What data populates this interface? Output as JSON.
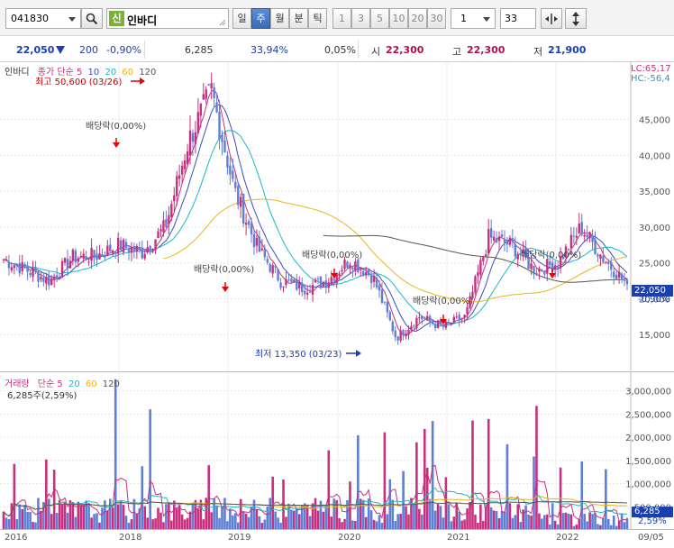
{
  "toolbar": {
    "code": "041830",
    "badge": "신",
    "name": "인바디",
    "period_buttons": [
      "일",
      "주",
      "월",
      "분",
      "틱"
    ],
    "selected_period": "주",
    "minute_buttons": [
      "1",
      "3",
      "5",
      "10",
      "20",
      "30"
    ],
    "interval_value": "1",
    "count_value": "33"
  },
  "quote": {
    "price": "22,050",
    "change": "200",
    "change_rate": "-0,90%",
    "volume": "6,285",
    "volume_rate": "33,94%",
    "turnover": "0,05%",
    "open_label": "시",
    "open": "22,300",
    "high_label": "고",
    "high": "22,300",
    "low_label": "저",
    "low": "21,900"
  },
  "price_legend": {
    "name": "인바디",
    "series": "종가",
    "method": "단순",
    "ma5": "5",
    "ma10": "10",
    "ma20": "20",
    "ma60": "60",
    "ma120": "120"
  },
  "price_annotations": {
    "high_label": "최고 50,600 (03/26)",
    "low_label": "최저 13,350 (03/23)",
    "dividend_label": "배당락(0,00%)",
    "lc": "LC:65,17",
    "hc": "HC:-56,4",
    "current_price": "22,050",
    "current_rate": "-0,90%"
  },
  "volume_legend": {
    "name": "거래량",
    "method": "단순",
    "ma5": "5",
    "ma20": "20",
    "ma60": "60",
    "ma120": "120",
    "current": "6,285주(2,59%)",
    "current_vol": "6,285",
    "current_rate": "2,59%"
  },
  "colors": {
    "up": "#c8307f",
    "down": "#5e7fd6",
    "ma5": "#c8307f",
    "ma10": "#3b4dbf",
    "ma20": "#18b8c8",
    "ma60": "#e8b520",
    "ma120": "#555555"
  },
  "chart_data": [
    {
      "type": "candlestick",
      "title": "인바디",
      "ylim": [
        10000,
        53000
      ],
      "y_ticks": [
        "15,000",
        "20,000",
        "25,000",
        "30,000",
        "35,000",
        "40,000",
        "45,000"
      ],
      "x": [
        "2016-01",
        "2016-04",
        "2016-07",
        "2016-10",
        "2017-01",
        "2017-04",
        "2017-07",
        "2017-10",
        "2018-01",
        "2018-03",
        "2018-06",
        "2018-09",
        "2018-12",
        "2019-03",
        "2019-06",
        "2019-09",
        "2019-12",
        "2020-03",
        "2020-06",
        "2020-09",
        "2020-12",
        "2021-03",
        "2021-06",
        "2021-09",
        "2021-12",
        "2022-03",
        "2022-06",
        "2022-09"
      ],
      "close": [
        25500,
        24000,
        22500,
        25800,
        26000,
        27500,
        26500,
        30000,
        42000,
        49000,
        35000,
        27000,
        22500,
        21500,
        22500,
        25500,
        23000,
        14500,
        17500,
        16000,
        17500,
        28500,
        27500,
        24000,
        25000,
        30000,
        25500,
        22050
      ]
    },
    {
      "type": "bar",
      "title": "거래량",
      "y_ticks": [
        "500,000",
        "1,000,000",
        "1,500,000",
        "2,000,000",
        "2,500,000",
        "3,000,000"
      ],
      "ylim": [
        0,
        3400000
      ]
    }
  ],
  "x_axis_labels": [
    "2016",
    "2018",
    "2019",
    "2020",
    "2021",
    "2022",
    "09/05"
  ]
}
